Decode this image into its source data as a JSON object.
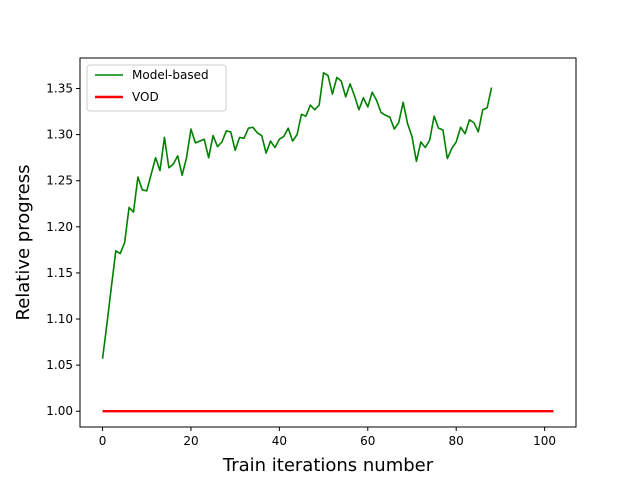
{
  "chart_data": {
    "type": "line",
    "title": "",
    "xlabel": "Train iterations number",
    "ylabel": "Relative progress",
    "xlim": [
      -5.1,
      107.1
    ],
    "ylim": [
      0.9829,
      1.3831
    ],
    "xticks": [
      0,
      20,
      40,
      60,
      80,
      100
    ],
    "xtick_labels": [
      "0",
      "20",
      "40",
      "60",
      "80",
      "100"
    ],
    "yticks": [
      1.0,
      1.05,
      1.1,
      1.15,
      1.2,
      1.25,
      1.3,
      1.35
    ],
    "ytick_labels": [
      "1.00",
      "1.05",
      "1.10",
      "1.15",
      "1.20",
      "1.25",
      "1.30",
      "1.35"
    ],
    "grid": false,
    "legend_position": "upper-left",
    "series": [
      {
        "name": "Model-based",
        "color": "#008000",
        "x": [
          0,
          1,
          2,
          3,
          4,
          5,
          6,
          7,
          8,
          9,
          10,
          11,
          12,
          13,
          14,
          15,
          16,
          17,
          18,
          19,
          20,
          21,
          22,
          23,
          24,
          25,
          26,
          27,
          28,
          29,
          30,
          31,
          32,
          33,
          34,
          35,
          36,
          37,
          38,
          39,
          40,
          41,
          42,
          43,
          44,
          45,
          46,
          47,
          48,
          49,
          50,
          51,
          52,
          53,
          54,
          55,
          56,
          57,
          58,
          59,
          60,
          61,
          62,
          63,
          64,
          65,
          66,
          67,
          68,
          69,
          70,
          71,
          72,
          73,
          74,
          75,
          76,
          77,
          78,
          79,
          80,
          81,
          82,
          83,
          84,
          85,
          86,
          87,
          88
        ],
        "y": [
          1.057,
          1.095,
          1.135,
          1.174,
          1.171,
          1.183,
          1.221,
          1.216,
          1.254,
          1.24,
          1.239,
          1.257,
          1.275,
          1.261,
          1.297,
          1.264,
          1.268,
          1.277,
          1.256,
          1.275,
          1.306,
          1.291,
          1.293,
          1.295,
          1.275,
          1.299,
          1.287,
          1.292,
          1.304,
          1.303,
          1.283,
          1.297,
          1.296,
          1.307,
          1.308,
          1.302,
          1.299,
          1.28,
          1.293,
          1.286,
          1.295,
          1.298,
          1.307,
          1.293,
          1.3,
          1.322,
          1.32,
          1.332,
          1.327,
          1.332,
          1.367,
          1.364,
          1.344,
          1.362,
          1.358,
          1.341,
          1.355,
          1.342,
          1.327,
          1.34,
          1.33,
          1.346,
          1.337,
          1.324,
          1.321,
          1.319,
          1.306,
          1.313,
          1.335,
          1.312,
          1.298,
          1.271,
          1.292,
          1.286,
          1.294,
          1.32,
          1.307,
          1.305,
          1.274,
          1.285,
          1.292,
          1.308,
          1.301,
          1.316,
          1.313,
          1.303,
          1.327,
          1.329,
          1.351
        ]
      },
      {
        "name": "VOD",
        "color": "#ff0000",
        "x": [
          0,
          102
        ],
        "y": [
          1.0,
          1.0
        ]
      }
    ]
  }
}
